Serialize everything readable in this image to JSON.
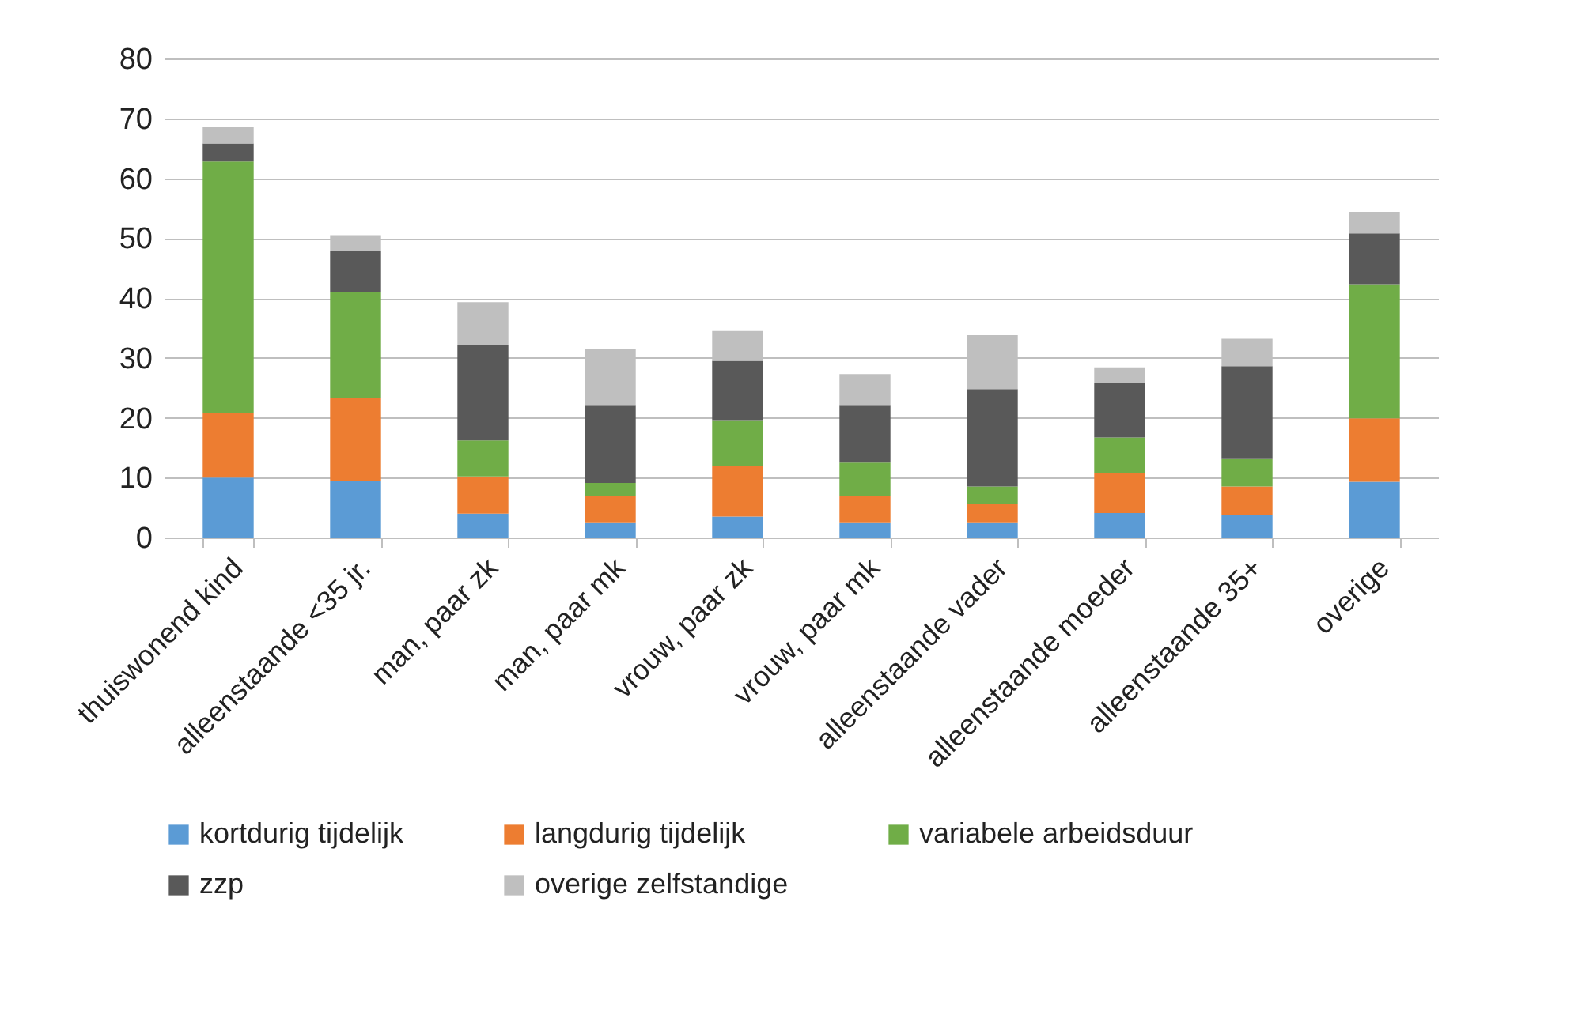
{
  "chart_data": {
    "type": "bar",
    "stacked": true,
    "categories": [
      "thuiswonend kind",
      "alleenstaande <35 jr.",
      "man, paar zk",
      "man, paar mk",
      "vrouw, paar zk",
      "vrouw, paar mk",
      "alleenstaande vader",
      "alleenstaande moeder",
      "alleenstaande 35+",
      "overige"
    ],
    "series": [
      {
        "name": "kortdurig tijdelijk",
        "color": "#5b9bd5",
        "values": [
          10,
          9.5,
          4,
          2.4,
          3.5,
          2.4,
          2.4,
          4.1,
          3.8,
          9.3
        ]
      },
      {
        "name": "langdurig tijdelijk",
        "color": "#ed7d31",
        "values": [
          10.8,
          13.8,
          6.2,
          4.5,
          8.4,
          4.5,
          3.2,
          6.6,
          4.7,
          10.6
        ]
      },
      {
        "name": "variabele arbeidsduur",
        "color": "#70ad47",
        "values": [
          42,
          17.7,
          6,
          2.2,
          7.7,
          5.6,
          2.9,
          6,
          4.6,
          22.4
        ]
      },
      {
        "name": "zzp",
        "color": "#595959",
        "values": [
          3,
          6.8,
          16,
          12.9,
          9.9,
          9.5,
          16.3,
          9.1,
          15.5,
          8.5
        ]
      },
      {
        "name": "overige zelfstandige",
        "color": "#bfbfbf",
        "values": [
          2.7,
          2.7,
          7.1,
          9.5,
          5,
          5.3,
          9,
          2.6,
          4.6,
          3.6
        ]
      }
    ],
    "ylim": [
      0,
      80
    ],
    "yticks": [
      0,
      10,
      20,
      30,
      40,
      50,
      60,
      70,
      80
    ],
    "grid": "y",
    "legend": "bottom"
  }
}
